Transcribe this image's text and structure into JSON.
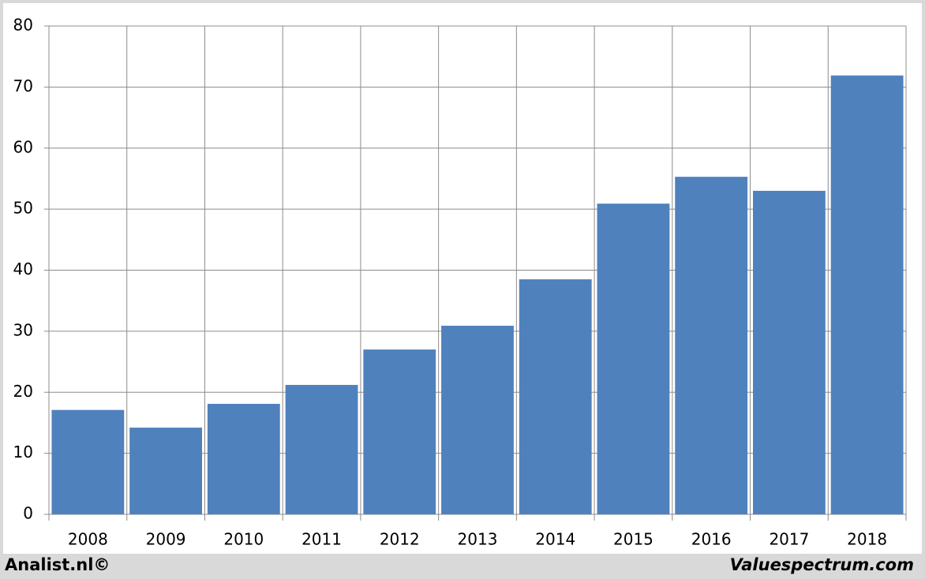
{
  "chart_data": {
    "type": "bar",
    "categories": [
      "2008",
      "2009",
      "2010",
      "2011",
      "2012",
      "2013",
      "2014",
      "2015",
      "2016",
      "2017",
      "2018"
    ],
    "values": [
      17.1,
      14.2,
      18.1,
      21.2,
      27.0,
      30.9,
      38.5,
      50.9,
      55.3,
      53.0,
      71.9
    ],
    "color": "#4f81bd",
    "ylim": [
      0,
      80
    ],
    "yticks": [
      0,
      10,
      20,
      30,
      40,
      50,
      60,
      70,
      80
    ],
    "grid": true,
    "annotations": [
      "Analist.nl©",
      "Valuespectrum.com"
    ]
  }
}
